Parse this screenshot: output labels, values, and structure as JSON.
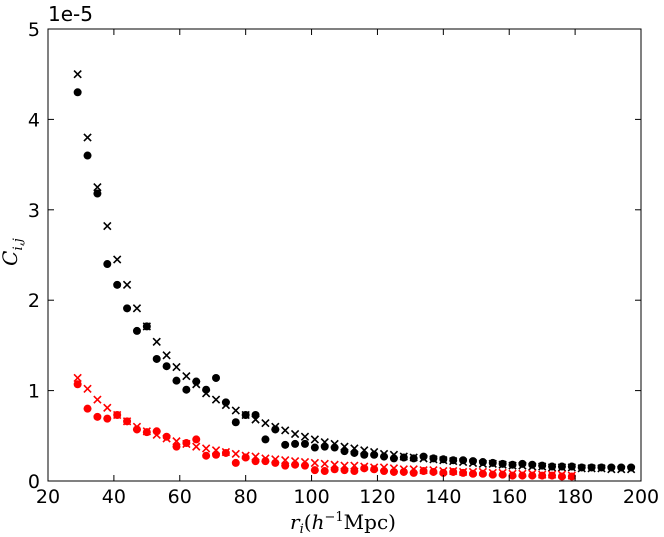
{
  "chart_data": {
    "type": "scatter",
    "title": "",
    "xlabel": "r_i (h^-1 Mpc)",
    "ylabel": "C_i,j",
    "scale_label": "1e-5",
    "xlim": [
      20,
      200
    ],
    "ylim": [
      0,
      5
    ],
    "xticks": [
      20,
      40,
      60,
      80,
      100,
      120,
      140,
      160,
      180,
      200
    ],
    "yticks": [
      0,
      1,
      2,
      3,
      4,
      5
    ],
    "grid": false,
    "legend": "none",
    "series": [
      {
        "color": "#000000",
        "marker": "circle",
        "points": [
          [
            29,
            4.3
          ],
          [
            32,
            3.6
          ],
          [
            35,
            3.18
          ],
          [
            38,
            2.4
          ],
          [
            41,
            2.17
          ],
          [
            44,
            1.91
          ],
          [
            47,
            1.66
          ],
          [
            50,
            1.71
          ],
          [
            53,
            1.35
          ],
          [
            56,
            1.27
          ],
          [
            59,
            1.11
          ],
          [
            62,
            1.01
          ],
          [
            65,
            1.1
          ],
          [
            68,
            1.01
          ],
          [
            71,
            1.14
          ],
          [
            74,
            0.87
          ],
          [
            77,
            0.65
          ],
          [
            80,
            0.73
          ],
          [
            83,
            0.73
          ],
          [
            86,
            0.46
          ],
          [
            89,
            0.57
          ],
          [
            92,
            0.4
          ],
          [
            95,
            0.41
          ],
          [
            98,
            0.41
          ],
          [
            101,
            0.37
          ],
          [
            104,
            0.38
          ],
          [
            107,
            0.37
          ],
          [
            110,
            0.33
          ],
          [
            113,
            0.31
          ],
          [
            116,
            0.29
          ],
          [
            119,
            0.29
          ],
          [
            122,
            0.27
          ],
          [
            125,
            0.25
          ],
          [
            128,
            0.26
          ],
          [
            131,
            0.25
          ],
          [
            134,
            0.27
          ],
          [
            137,
            0.25
          ],
          [
            140,
            0.24
          ],
          [
            143,
            0.23
          ],
          [
            146,
            0.23
          ],
          [
            149,
            0.22
          ],
          [
            152,
            0.21
          ],
          [
            155,
            0.2
          ],
          [
            158,
            0.19
          ],
          [
            161,
            0.18
          ],
          [
            164,
            0.19
          ],
          [
            167,
            0.18
          ],
          [
            170,
            0.17
          ],
          [
            173,
            0.16
          ],
          [
            176,
            0.16
          ],
          [
            179,
            0.16
          ],
          [
            182,
            0.15
          ],
          [
            185,
            0.15
          ],
          [
            188,
            0.15
          ],
          [
            191,
            0.15
          ],
          [
            194,
            0.15
          ],
          [
            197,
            0.15
          ]
        ]
      },
      {
        "color": "#000000",
        "marker": "x",
        "points": [
          [
            29,
            4.5
          ],
          [
            32,
            3.8
          ],
          [
            35,
            3.25
          ],
          [
            38,
            2.82
          ],
          [
            41,
            2.45
          ],
          [
            44,
            2.17
          ],
          [
            47,
            1.91
          ],
          [
            50,
            1.71
          ],
          [
            53,
            1.54
          ],
          [
            56,
            1.39
          ],
          [
            59,
            1.26
          ],
          [
            62,
            1.16
          ],
          [
            65,
            1.07
          ],
          [
            68,
            0.97
          ],
          [
            71,
            0.9
          ],
          [
            74,
            0.84
          ],
          [
            77,
            0.78
          ],
          [
            80,
            0.73
          ],
          [
            83,
            0.68
          ],
          [
            86,
            0.64
          ],
          [
            89,
            0.6
          ],
          [
            92,
            0.56
          ],
          [
            95,
            0.52
          ],
          [
            98,
            0.49
          ],
          [
            101,
            0.46
          ],
          [
            104,
            0.43
          ],
          [
            107,
            0.41
          ],
          [
            110,
            0.38
          ],
          [
            113,
            0.36
          ],
          [
            116,
            0.34
          ],
          [
            119,
            0.32
          ],
          [
            122,
            0.3
          ],
          [
            125,
            0.29
          ],
          [
            128,
            0.27
          ],
          [
            131,
            0.26
          ],
          [
            134,
            0.25
          ],
          [
            137,
            0.24
          ],
          [
            140,
            0.23
          ],
          [
            143,
            0.22
          ],
          [
            146,
            0.21
          ],
          [
            149,
            0.2
          ],
          [
            152,
            0.19
          ],
          [
            155,
            0.19
          ],
          [
            158,
            0.18
          ],
          [
            161,
            0.17
          ],
          [
            164,
            0.17
          ],
          [
            167,
            0.16
          ],
          [
            170,
            0.16
          ],
          [
            173,
            0.15
          ],
          [
            176,
            0.15
          ],
          [
            179,
            0.15
          ],
          [
            182,
            0.14
          ],
          [
            185,
            0.14
          ],
          [
            188,
            0.14
          ],
          [
            191,
            0.13
          ],
          [
            194,
            0.13
          ],
          [
            197,
            0.13
          ]
        ]
      },
      {
        "color": "#ff0000",
        "marker": "circle",
        "points": [
          [
            29,
            1.07
          ],
          [
            32,
            0.8
          ],
          [
            35,
            0.71
          ],
          [
            38,
            0.69
          ],
          [
            41,
            0.73
          ],
          [
            44,
            0.66
          ],
          [
            47,
            0.57
          ],
          [
            50,
            0.54
          ],
          [
            53,
            0.55
          ],
          [
            56,
            0.49
          ],
          [
            59,
            0.38
          ],
          [
            62,
            0.42
          ],
          [
            65,
            0.46
          ],
          [
            68,
            0.28
          ],
          [
            71,
            0.29
          ],
          [
            74,
            0.31
          ],
          [
            77,
            0.2
          ],
          [
            80,
            0.26
          ],
          [
            83,
            0.22
          ],
          [
            86,
            0.22
          ],
          [
            89,
            0.2
          ],
          [
            92,
            0.17
          ],
          [
            95,
            0.18
          ],
          [
            98,
            0.17
          ],
          [
            101,
            0.12
          ],
          [
            104,
            0.11
          ],
          [
            107,
            0.13
          ],
          [
            110,
            0.12
          ],
          [
            113,
            0.11
          ],
          [
            116,
            0.14
          ],
          [
            119,
            0.13
          ],
          [
            122,
            0.11
          ],
          [
            125,
            0.1
          ],
          [
            128,
            0.1
          ],
          [
            131,
            0.09
          ],
          [
            134,
            0.11
          ],
          [
            137,
            0.1
          ],
          [
            140,
            0.09
          ],
          [
            143,
            0.1
          ],
          [
            146,
            0.09
          ],
          [
            149,
            0.08
          ],
          [
            152,
            0.08
          ],
          [
            155,
            0.07
          ],
          [
            158,
            0.07
          ],
          [
            161,
            0.06
          ],
          [
            164,
            0.06
          ],
          [
            167,
            0.06
          ],
          [
            170,
            0.06
          ],
          [
            173,
            0.06
          ],
          [
            176,
            0.05
          ],
          [
            179,
            0.05
          ]
        ]
      },
      {
        "color": "#ff0000",
        "marker": "x",
        "points": [
          [
            29,
            1.14
          ],
          [
            32,
            1.02
          ],
          [
            35,
            0.9
          ],
          [
            38,
            0.81
          ],
          [
            41,
            0.73
          ],
          [
            44,
            0.66
          ],
          [
            47,
            0.6
          ],
          [
            50,
            0.55
          ],
          [
            53,
            0.51
          ],
          [
            56,
            0.47
          ],
          [
            59,
            0.44
          ],
          [
            62,
            0.41
          ],
          [
            65,
            0.38
          ],
          [
            68,
            0.36
          ],
          [
            71,
            0.34
          ],
          [
            74,
            0.32
          ],
          [
            77,
            0.3
          ],
          [
            80,
            0.28
          ],
          [
            83,
            0.27
          ],
          [
            86,
            0.25
          ],
          [
            89,
            0.24
          ],
          [
            92,
            0.23
          ],
          [
            95,
            0.22
          ],
          [
            98,
            0.21
          ],
          [
            101,
            0.2
          ],
          [
            104,
            0.19
          ],
          [
            107,
            0.18
          ],
          [
            110,
            0.17
          ],
          [
            113,
            0.17
          ],
          [
            116,
            0.16
          ],
          [
            119,
            0.15
          ],
          [
            122,
            0.15
          ],
          [
            125,
            0.14
          ],
          [
            128,
            0.13
          ],
          [
            131,
            0.13
          ],
          [
            134,
            0.12
          ],
          [
            137,
            0.12
          ],
          [
            140,
            0.11
          ],
          [
            143,
            0.11
          ],
          [
            146,
            0.1
          ],
          [
            149,
            0.1
          ],
          [
            152,
            0.1
          ],
          [
            155,
            0.09
          ],
          [
            158,
            0.09
          ],
          [
            161,
            0.08
          ],
          [
            164,
            0.08
          ],
          [
            167,
            0.08
          ],
          [
            170,
            0.07
          ],
          [
            173,
            0.07
          ],
          [
            176,
            0.07
          ],
          [
            179,
            0.06
          ]
        ]
      }
    ]
  }
}
